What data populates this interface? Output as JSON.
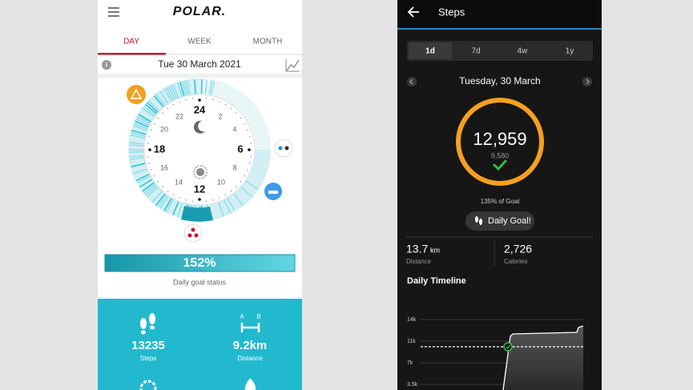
{
  "left_app": {
    "logo": "POLAR.",
    "tabs": [
      "DAY",
      "WEEK",
      "MONTH"
    ],
    "date": "Tue 30 March 2021",
    "dial_labels": [
      "24",
      "22",
      "20",
      "18",
      "16",
      "14",
      "12",
      "10",
      "8",
      "6",
      "4",
      "2"
    ],
    "goal_percent": "152%",
    "goal_caption": "Daily goal status",
    "distance_icon": [
      "A",
      "B"
    ],
    "stats": [
      {
        "value": "13235",
        "label": "Steps"
      },
      {
        "value": "9.2km",
        "label": "Distance"
      }
    ]
  },
  "right_app": {
    "title": "Steps",
    "ranges": [
      "1d",
      "7d",
      "4w",
      "1y"
    ],
    "date": "Tuesday, 30 March",
    "steps": "12,959",
    "goal": "9,580",
    "goal_progress": "135% of Goal",
    "badge": "Daily Goal!",
    "metrics": [
      {
        "value": "13.7",
        "unit": "km",
        "label": "Distance"
      },
      {
        "value": "2,726",
        "label": "Calories"
      }
    ],
    "timeline": {
      "title": "Daily Timeline",
      "y_labels": [
        "14k",
        "11k",
        "7k",
        "3.5k"
      ]
    }
  }
}
